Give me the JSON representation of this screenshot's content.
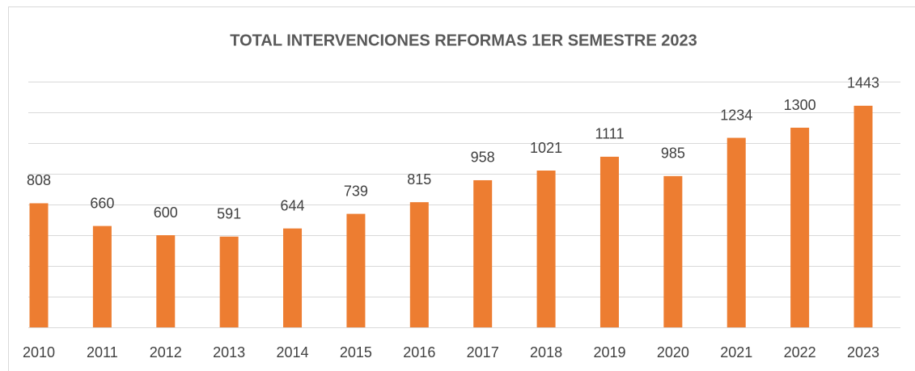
{
  "chart_data": {
    "type": "bar",
    "title": "TOTAL INTERVENCIONES REFORMAS 1ER SEMESTRE 2023",
    "categories": [
      "2010",
      "2011",
      "2012",
      "2013",
      "2014",
      "2015",
      "2016",
      "2017",
      "2018",
      "2019",
      "2020",
      "2021",
      "2022",
      "2023"
    ],
    "values": [
      808,
      660,
      600,
      591,
      644,
      739,
      815,
      958,
      1021,
      1111,
      985,
      1234,
      1300,
      1443
    ],
    "color": "#ed7d31",
    "ylim": [
      0,
      1600
    ],
    "yticks": [
      0,
      200,
      400,
      600,
      800,
      1000,
      1200,
      1400,
      1600
    ],
    "grid": true
  }
}
